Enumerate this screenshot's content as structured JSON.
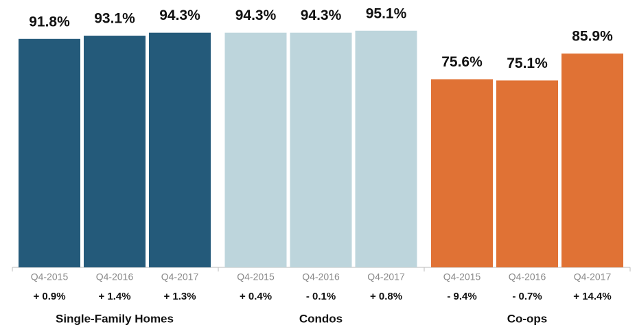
{
  "chart_data": {
    "type": "bar",
    "ylim": [
      0,
      100
    ],
    "groups": [
      {
        "name": "Single-Family Homes",
        "color": "#245a7a",
        "categories": [
          "Q4-2015",
          "Q4-2016",
          "Q4-2017"
        ],
        "values": [
          91.8,
          93.1,
          94.3
        ],
        "value_labels": [
          "91.8%",
          "93.1%",
          "94.3%"
        ],
        "changes": [
          "+ 0.9%",
          "+ 1.4%",
          "+ 1.3%"
        ]
      },
      {
        "name": "Condos",
        "color": "#bdd5dc",
        "categories": [
          "Q4-2015",
          "Q4-2016",
          "Q4-2017"
        ],
        "values": [
          94.3,
          94.3,
          95.1
        ],
        "value_labels": [
          "94.3%",
          "94.3%",
          "95.1%"
        ],
        "changes": [
          "+ 0.4%",
          "- 0.1%",
          "+ 0.8%"
        ]
      },
      {
        "name": "Co-ops",
        "color": "#e07235",
        "categories": [
          "Q4-2015",
          "Q4-2016",
          "Q4-2017"
        ],
        "values": [
          75.6,
          75.1,
          85.9
        ],
        "value_labels": [
          "75.6%",
          "75.1%",
          "85.9%"
        ],
        "changes": [
          "- 9.4%",
          "- 0.7%",
          "+ 14.4%"
        ]
      }
    ]
  }
}
